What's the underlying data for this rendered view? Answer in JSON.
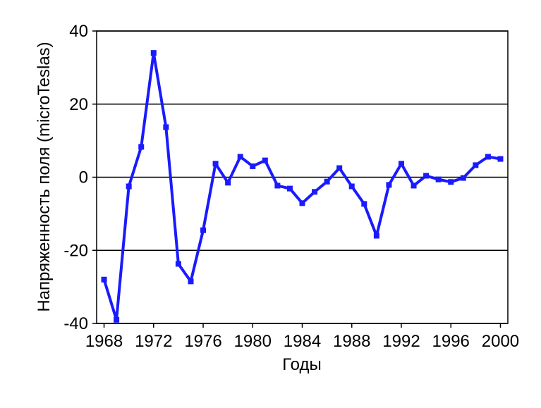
{
  "chart_data": {
    "type": "line",
    "x_label": "Годы",
    "y_label": "Напряженность поля (microTeslas)",
    "x": [
      1968,
      1969,
      1970,
      1971,
      1972,
      1973,
      1974,
      1975,
      1976,
      1977,
      1978,
      1979,
      1980,
      1981,
      1982,
      1983,
      1984,
      1985,
      1986,
      1987,
      1988,
      1989,
      1990,
      1991,
      1992,
      1993,
      1994,
      1995,
      1996,
      1997,
      1998,
      1999,
      2000
    ],
    "series": [
      {
        "color": "#1a1aff",
        "values": [
          -28,
          -39,
          -2.5,
          8.3,
          34,
          13.7,
          -23.7,
          -28.5,
          -14.5,
          3.7,
          -1.5,
          5.6,
          3,
          4.6,
          -2.3,
          -3.1,
          -7.1,
          -4,
          -1.2,
          2.5,
          -2.5,
          -7.3,
          -16,
          -2.1,
          3.7,
          -2.3,
          0.4,
          -0.6,
          -1.3,
          -0.2,
          3.3,
          5.6,
          5
        ]
      }
    ],
    "xlim": [
      1967.4,
      2000.6
    ],
    "xticks": [
      1968,
      1972,
      1976,
      1980,
      1984,
      1988,
      1992,
      1996,
      2000
    ],
    "ylim": [
      -40,
      40
    ],
    "yticks": [
      -40,
      -20,
      0,
      20,
      40
    ],
    "grid": true
  }
}
